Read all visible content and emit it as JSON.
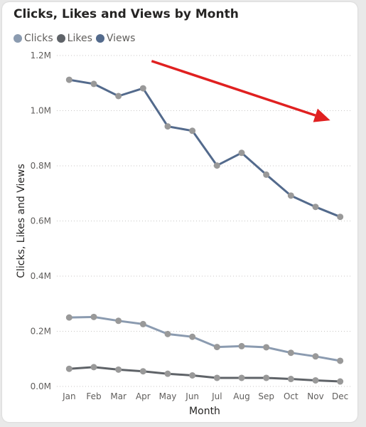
{
  "chart_data": {
    "type": "line",
    "title": "Clicks, Likes and Views by Month",
    "xlabel": "Month",
    "ylabel": "Clicks, Likes and Views",
    "categories": [
      "Jan",
      "Feb",
      "Mar",
      "Apr",
      "May",
      "Jun",
      "Jul",
      "Aug",
      "Sep",
      "Oct",
      "Nov",
      "Dec"
    ],
    "ylim": [
      0,
      1200000
    ],
    "y_ticks": [
      0,
      200000,
      400000,
      600000,
      800000,
      1000000,
      1200000
    ],
    "y_tick_labels": [
      "0.0M",
      "0.2M",
      "0.4M",
      "0.6M",
      "0.8M",
      "1.0M",
      "1.2M"
    ],
    "grid": true,
    "legend_position": "top-left",
    "series": [
      {
        "name": "Clicks",
        "color": "#8b9bb0",
        "values": [
          250000,
          252000,
          238000,
          226000,
          190000,
          180000,
          143000,
          146000,
          142000,
          122000,
          109000,
          93000
        ]
      },
      {
        "name": "Likes",
        "color": "#5f6368",
        "values": [
          64000,
          70000,
          61000,
          55000,
          46000,
          40000,
          31000,
          31000,
          31000,
          27000,
          22000,
          18000
        ]
      },
      {
        "name": "Views",
        "color": "#536a8c",
        "values": [
          1112000,
          1097000,
          1053000,
          1081000,
          943000,
          927000,
          801000,
          847000,
          768000,
          692000,
          651000,
          615000
        ]
      }
    ],
    "marker_color": "#999999",
    "annotation": {
      "type": "arrow",
      "color": "#e02020",
      "from": [
        "Apr",
        1180000
      ],
      "to": [
        "Dec",
        965000
      ]
    }
  }
}
